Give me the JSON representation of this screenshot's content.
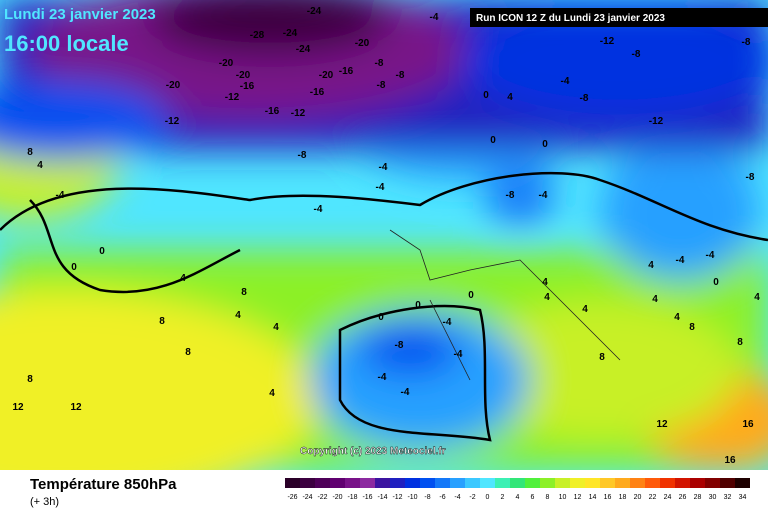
{
  "header": {
    "date": "Lundi 23 janvier 2023",
    "time": "16:00 locale",
    "run": "Run ICON 12 Z du Lundi 23 janvier 2023"
  },
  "copyright": "Copyright (c) 2023 Meteociel.fr",
  "footer": {
    "title": "Température 850hPa",
    "step": "(+ 3h)"
  },
  "colorbar": [
    {
      "label": "-26",
      "color": "#2a0028"
    },
    {
      "label": "-24",
      "color": "#3c0040"
    },
    {
      "label": "-22",
      "color": "#4e0058"
    },
    {
      "label": "-20",
      "color": "#600070"
    },
    {
      "label": "-18",
      "color": "#781288"
    },
    {
      "label": "-16",
      "color": "#8c2aa0"
    },
    {
      "label": "-14",
      "color": "#3c14a0"
    },
    {
      "label": "-12",
      "color": "#2020c0"
    },
    {
      "label": "-10",
      "color": "#0030e0"
    },
    {
      "label": "-8",
      "color": "#0050f0"
    },
    {
      "label": "-6",
      "color": "#1478f8"
    },
    {
      "label": "-4",
      "color": "#28a0ff"
    },
    {
      "label": "-2",
      "color": "#3cc8ff"
    },
    {
      "label": "0",
      "color": "#50e6ff"
    },
    {
      "label": "2",
      "color": "#3cf0b4"
    },
    {
      "label": "4",
      "color": "#32e678"
    },
    {
      "label": "6",
      "color": "#50f03c"
    },
    {
      "label": "8",
      "color": "#8cf028"
    },
    {
      "label": "10",
      "color": "#c8f028"
    },
    {
      "label": "12",
      "color": "#f0f028"
    },
    {
      "label": "14",
      "color": "#ffe628"
    },
    {
      "label": "16",
      "color": "#ffc828"
    },
    {
      "label": "18",
      "color": "#ffaa1e"
    },
    {
      "label": "20",
      "color": "#ff8214"
    },
    {
      "label": "22",
      "color": "#ff5a0a"
    },
    {
      "label": "24",
      "color": "#f03200"
    },
    {
      "label": "26",
      "color": "#d21400"
    },
    {
      "label": "28",
      "color": "#aa0000"
    },
    {
      "label": "30",
      "color": "#820000"
    },
    {
      "label": "32",
      "color": "#500000"
    },
    {
      "label": "34",
      "color": "#1e0000"
    }
  ],
  "map_labels": [
    "-24",
    "-28",
    "-24",
    "-20",
    "-20",
    "-20",
    "-16",
    "-12",
    "-12",
    "-16",
    "-12",
    "-16",
    "-20",
    "-16",
    "-24",
    "-20",
    "-8",
    "-8",
    "-8",
    "-4",
    "-4",
    "-12",
    "-8",
    "-8",
    "-4",
    "-8",
    "-12",
    "-8",
    "-8",
    "-4",
    "-4",
    "-8",
    "-4",
    "0",
    "0",
    "4",
    "0",
    "-4",
    "-4",
    "4",
    "8",
    "0",
    "0",
    "4",
    "8",
    "4",
    "4",
    "8",
    "8",
    "8",
    "12",
    "12",
    "4",
    "-8",
    "-4",
    "-4",
    "-4",
    "4",
    "8",
    "12",
    "16",
    "16",
    "-4",
    "-4",
    "0",
    "4",
    "4",
    "8",
    "4",
    "4",
    "8",
    "0",
    "0",
    "-4",
    "0",
    "4",
    "4"
  ]
}
